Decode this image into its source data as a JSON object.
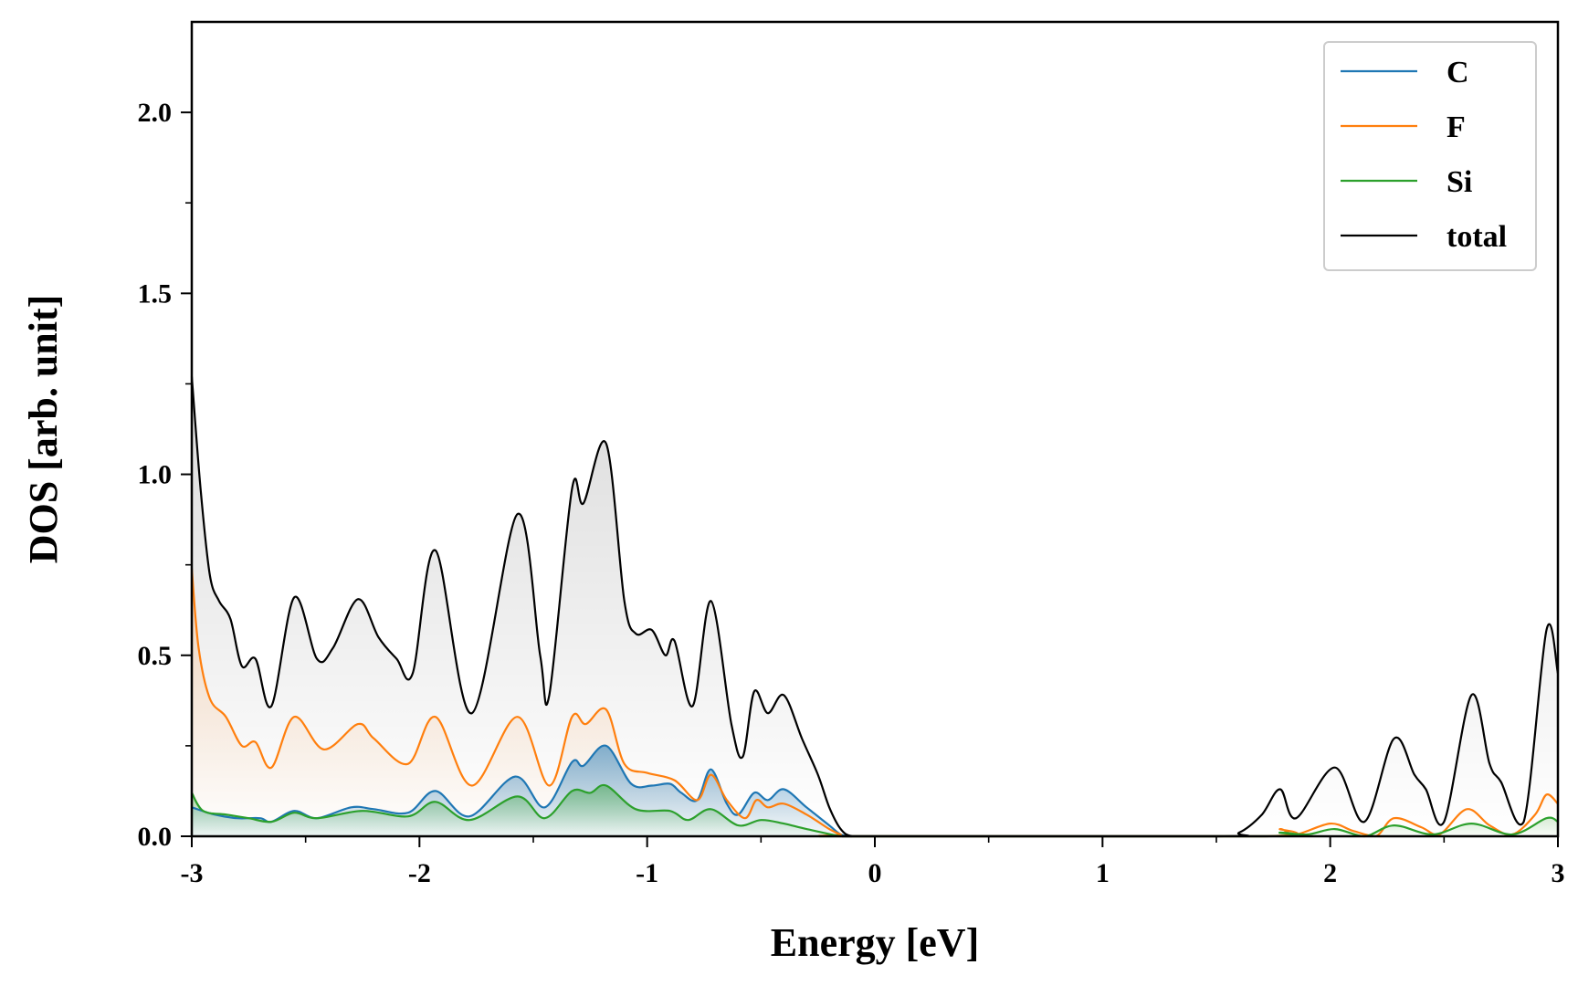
{
  "chart_data": {
    "type": "line",
    "title": "",
    "xlabel": "Energy [eV]",
    "ylabel": "DOS [arb. unit]",
    "xlim": [
      -3,
      3
    ],
    "ylim": [
      0,
      2.25
    ],
    "x_ticks": [
      -3,
      -2,
      -1,
      0,
      1,
      2,
      3
    ],
    "x_tick_labels": [
      "-3",
      "-2",
      "-1",
      "0",
      "1",
      "2",
      "3"
    ],
    "y_ticks": [
      0.0,
      0.5,
      1.0,
      1.5,
      2.0
    ],
    "y_tick_labels": [
      "0.0",
      "0.5",
      "1.0",
      "1.5",
      "2.0"
    ],
    "grid": false,
    "legend_position": "top-right",
    "series": [
      {
        "name": "C",
        "color": "#1f77b4",
        "fill": true,
        "x": [
          -3.0,
          -2.9,
          -2.8,
          -2.7,
          -2.65,
          -2.55,
          -2.45,
          -2.3,
          -2.2,
          -2.05,
          -1.93,
          -1.78,
          -1.58,
          -1.45,
          -1.33,
          -1.28,
          -1.18,
          -1.07,
          -0.98,
          -0.9,
          -0.85,
          -0.78,
          -0.72,
          -0.65,
          -0.6,
          -0.53,
          -0.47,
          -0.4,
          -0.3,
          -0.2,
          -0.15,
          -0.1
        ],
        "y": [
          0.08,
          0.06,
          0.05,
          0.05,
          0.04,
          0.07,
          0.05,
          0.08,
          0.075,
          0.065,
          0.125,
          0.055,
          0.165,
          0.08,
          0.205,
          0.195,
          0.25,
          0.145,
          0.14,
          0.145,
          0.12,
          0.1,
          0.185,
          0.09,
          0.06,
          0.12,
          0.1,
          0.13,
          0.08,
          0.03,
          0.005,
          0.0
        ]
      },
      {
        "name": "F",
        "color": "#ff7f0e",
        "fill": true,
        "x": [
          -3.0,
          -2.97,
          -2.92,
          -2.85,
          -2.78,
          -2.72,
          -2.65,
          -2.55,
          -2.42,
          -2.27,
          -2.2,
          -2.05,
          -1.93,
          -1.77,
          -1.57,
          -1.43,
          -1.33,
          -1.27,
          -1.18,
          -1.1,
          -1.0,
          -0.88,
          -0.78,
          -0.72,
          -0.65,
          -0.57,
          -0.52,
          -0.47,
          -0.4,
          -0.3,
          -0.2,
          -0.15,
          -0.1,
          1.7,
          1.78,
          1.85,
          2.0,
          2.1,
          2.2,
          2.28,
          2.4,
          2.48,
          2.6,
          2.7,
          2.8,
          2.9,
          2.95,
          3.0
        ],
        "y": [
          0.74,
          0.52,
          0.38,
          0.33,
          0.25,
          0.26,
          0.19,
          0.33,
          0.24,
          0.31,
          0.27,
          0.2,
          0.33,
          0.14,
          0.33,
          0.14,
          0.33,
          0.31,
          0.35,
          0.2,
          0.175,
          0.155,
          0.1,
          0.17,
          0.1,
          0.05,
          0.1,
          0.08,
          0.09,
          0.06,
          0.02,
          0.005,
          0.0,
          0.0,
          0.02,
          0.005,
          0.035,
          0.015,
          0.0,
          0.05,
          0.025,
          0.005,
          0.075,
          0.03,
          0.005,
          0.06,
          0.115,
          0.09
        ]
      },
      {
        "name": "Si",
        "color": "#2ca02c",
        "fill": true,
        "x": [
          -3.0,
          -2.95,
          -2.85,
          -2.75,
          -2.65,
          -2.55,
          -2.45,
          -2.25,
          -2.05,
          -1.93,
          -1.78,
          -1.57,
          -1.45,
          -1.33,
          -1.25,
          -1.18,
          -1.05,
          -0.9,
          -0.82,
          -0.72,
          -0.6,
          -0.5,
          -0.4,
          -0.3,
          -0.15,
          -0.1,
          1.7,
          1.78,
          1.9,
          2.02,
          2.15,
          2.28,
          2.45,
          2.62,
          2.8,
          2.95,
          3.0
        ],
        "y": [
          0.12,
          0.07,
          0.06,
          0.05,
          0.04,
          0.065,
          0.05,
          0.07,
          0.055,
          0.095,
          0.045,
          0.11,
          0.05,
          0.125,
          0.12,
          0.14,
          0.075,
          0.07,
          0.045,
          0.075,
          0.03,
          0.045,
          0.035,
          0.02,
          0.0,
          0.0,
          0.0,
          0.01,
          0.005,
          0.02,
          0.0,
          0.03,
          0.005,
          0.035,
          0.005,
          0.05,
          0.04
        ]
      },
      {
        "name": "total",
        "color": "#000000",
        "fill": true,
        "x": [
          -3.0,
          -2.96,
          -2.92,
          -2.88,
          -2.83,
          -2.78,
          -2.72,
          -2.65,
          -2.55,
          -2.45,
          -2.38,
          -2.27,
          -2.18,
          -2.1,
          -2.03,
          -1.93,
          -1.77,
          -1.57,
          -1.47,
          -1.43,
          -1.33,
          -1.28,
          -1.18,
          -1.1,
          -1.05,
          -0.98,
          -0.92,
          -0.88,
          -0.8,
          -0.72,
          -0.63,
          -0.58,
          -0.53,
          -0.47,
          -0.4,
          -0.32,
          -0.25,
          -0.2,
          -0.15,
          -0.1,
          0.0,
          1.5,
          1.6,
          1.7,
          1.78,
          1.85,
          2.02,
          2.15,
          2.28,
          2.37,
          2.42,
          2.5,
          2.62,
          2.7,
          2.75,
          2.85,
          2.95,
          3.0
        ],
        "y": [
          1.27,
          0.95,
          0.72,
          0.65,
          0.6,
          0.47,
          0.49,
          0.36,
          0.66,
          0.49,
          0.52,
          0.655,
          0.55,
          0.49,
          0.45,
          0.79,
          0.34,
          0.89,
          0.5,
          0.39,
          0.96,
          0.92,
          1.085,
          0.65,
          0.56,
          0.57,
          0.5,
          0.54,
          0.36,
          0.65,
          0.31,
          0.22,
          0.4,
          0.34,
          0.39,
          0.27,
          0.17,
          0.08,
          0.02,
          0.0,
          0.0,
          0.0,
          0.01,
          0.06,
          0.13,
          0.05,
          0.19,
          0.04,
          0.27,
          0.17,
          0.13,
          0.04,
          0.39,
          0.2,
          0.15,
          0.04,
          0.57,
          0.45
        ]
      }
    ]
  }
}
